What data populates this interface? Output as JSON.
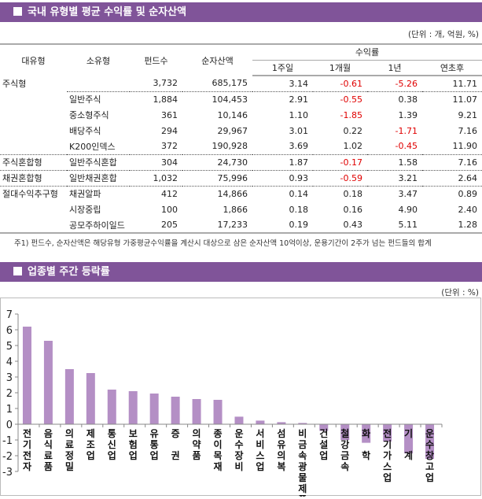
{
  "section1": {
    "title": "국내 유형별 평균 수익률 및 순자산액",
    "unit": "(단위 : 개, 억원, %)",
    "headers": {
      "major": "대유형",
      "minor": "소유형",
      "funds": "펀드수",
      "assets": "순자산액",
      "returns": "수익률",
      "w1": "1주일",
      "m1": "1개월",
      "y1": "1년",
      "ytd": "연초후"
    },
    "rows": [
      {
        "major": "주식형",
        "minor": "",
        "funds": "3,732",
        "assets": "685,175",
        "w1": "3.14",
        "m1": "-0.61",
        "y1": "-5.26",
        "ytd": "11.71"
      },
      {
        "major": "",
        "minor": "일반주식",
        "funds": "1,884",
        "assets": "104,453",
        "w1": "2.91",
        "m1": "-0.55",
        "y1": "0.38",
        "ytd": "11.07"
      },
      {
        "major": "",
        "minor": "중소형주식",
        "funds": "361",
        "assets": "10,146",
        "w1": "1.10",
        "m1": "-1.85",
        "y1": "1.39",
        "ytd": "9.21"
      },
      {
        "major": "",
        "minor": "배당주식",
        "funds": "294",
        "assets": "29,967",
        "w1": "3.01",
        "m1": "0.22",
        "y1": "-1.71",
        "ytd": "7.16"
      },
      {
        "major": "",
        "minor": "K200인덱스",
        "funds": "372",
        "assets": "190,928",
        "w1": "3.69",
        "m1": "1.02",
        "y1": "-0.45",
        "ytd": "11.90"
      },
      {
        "major": "주식혼합형",
        "minor": "일반주식혼합",
        "funds": "304",
        "assets": "24,730",
        "w1": "1.87",
        "m1": "-0.17",
        "y1": "1.58",
        "ytd": "7.16"
      },
      {
        "major": "채권혼합형",
        "minor": "일반채권혼합",
        "funds": "1,032",
        "assets": "75,996",
        "w1": "0.93",
        "m1": "-0.59",
        "y1": "3.21",
        "ytd": "2.64"
      },
      {
        "major": "절대수익추구형",
        "minor": "채권알파",
        "funds": "412",
        "assets": "14,866",
        "w1": "0.14",
        "m1": "0.18",
        "y1": "3.47",
        "ytd": "0.89"
      },
      {
        "major": "",
        "minor": "시장중립",
        "funds": "100",
        "assets": "1,866",
        "w1": "0.18",
        "m1": "0.16",
        "y1": "4.90",
        "ytd": "2.40"
      },
      {
        "major": "",
        "minor": "공모주하이일드",
        "funds": "205",
        "assets": "17,233",
        "w1": "0.19",
        "m1": "0.43",
        "y1": "5.11",
        "ytd": "1.28"
      }
    ],
    "note": "주1) 펀드수, 순자산액은 해당유형 가중평균수익률을 계산시 대상으로 삼은 순자산액 10억이상, 운용기간이 2주가 넘는 펀드들의 합계",
    "negative_color": "#e00000"
  },
  "section2": {
    "title": "업종별 주간 등락률",
    "unit": "(단위 : %)"
  },
  "chart_data": {
    "type": "bar",
    "title": "",
    "xlabel": "",
    "ylabel": "",
    "ylim": [
      -3,
      7
    ],
    "yticks": [
      7,
      6,
      5,
      4,
      3,
      2,
      1,
      0,
      -1,
      -2,
      -3
    ],
    "grid": false,
    "bar_color": "#b48fc5",
    "categories": [
      "전기 전자",
      "음식료품",
      "의료 정밀",
      "제 조 업",
      "통 신 업",
      "보 험 업",
      "유 통 업",
      "증  권",
      "의 약 품",
      "종 이 목 재",
      "운 수 장 비",
      "서 비 스 업",
      "섬 유 의 복",
      "비 금 속 광 물 제 품",
      "건 설 업",
      "철 강 금 속",
      "화  학",
      "전 기 가 스 업",
      "기  계",
      "운 수 창 고 업"
    ],
    "values": [
      6.2,
      5.3,
      3.5,
      3.25,
      2.2,
      2.1,
      1.95,
      1.75,
      1.6,
      1.55,
      0.48,
      0.23,
      0.13,
      0.08,
      -0.42,
      -1.0,
      -1.18,
      -1.1,
      -1.85,
      -2.2
    ]
  }
}
